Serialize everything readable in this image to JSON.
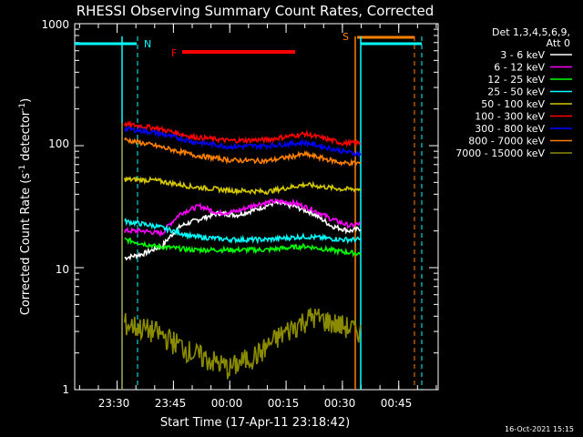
{
  "chart_data": {
    "type": "line",
    "title": "RHESSI Observing Summary Count Rates, Corrected",
    "xlabel": "Start Time (17-Apr-11 23:18:42)",
    "ylabel_main": "Corrected Count Rate (s",
    "ylabel_sup1": "-1",
    "ylabel_mid": " detector",
    "ylabel_sup2": "-1",
    "ylabel_end": ")",
    "ylog": true,
    "ylim": [
      1,
      1000
    ],
    "x_range_minutes": [
      "23:18:42",
      "00:55:30"
    ],
    "x_ticks": [
      "23:30",
      "23:45",
      "00:00",
      "00:15",
      "00:30",
      "00:45"
    ],
    "y_ticks": [
      "1",
      "10",
      "100",
      "1000"
    ],
    "legend_header": [
      "Det 1,3,4,5,6,9,",
      "Att 0"
    ],
    "legend_position": "top-right",
    "series": [
      {
        "name": "3 - 6 keV",
        "color": "#ffffff",
        "points": [
          [
            "23:32",
            12
          ],
          [
            "23:37",
            13
          ],
          [
            "23:42",
            15
          ],
          [
            "23:47",
            22
          ],
          [
            "23:52",
            25
          ],
          [
            "23:57",
            28
          ],
          [
            "00:02",
            27
          ],
          [
            "00:07",
            30
          ],
          [
            "00:12",
            34
          ],
          [
            "00:17",
            32
          ],
          [
            "00:22",
            28
          ],
          [
            "00:27",
            22
          ],
          [
            "00:32",
            20
          ],
          [
            "00:35",
            21
          ]
        ]
      },
      {
        "name": "6 - 12 keV",
        "color": "#ff00ff",
        "points": [
          [
            "23:32",
            20
          ],
          [
            "23:37",
            20
          ],
          [
            "23:42",
            19
          ],
          [
            "23:47",
            28
          ],
          [
            "23:52",
            32
          ],
          [
            "23:57",
            28
          ],
          [
            "00:02",
            29
          ],
          [
            "00:07",
            33
          ],
          [
            "00:12",
            35
          ],
          [
            "00:17",
            34
          ],
          [
            "00:22",
            30
          ],
          [
            "00:27",
            25
          ],
          [
            "00:32",
            22
          ],
          [
            "00:35",
            23
          ]
        ]
      },
      {
        "name": "12 - 25 keV",
        "color": "#00ff00",
        "points": [
          [
            "23:32",
            17
          ],
          [
            "23:40",
            15
          ],
          [
            "23:50",
            14
          ],
          [
            "00:00",
            14
          ],
          [
            "00:10",
            14
          ],
          [
            "00:20",
            15
          ],
          [
            "00:30",
            13.5
          ],
          [
            "00:35",
            13
          ]
        ]
      },
      {
        "name": "25 - 50 keV",
        "color": "#00ffff",
        "points": [
          [
            "23:32",
            24
          ],
          [
            "23:40",
            22
          ],
          [
            "23:50",
            18
          ],
          [
            "00:00",
            17
          ],
          [
            "00:10",
            17
          ],
          [
            "00:20",
            18
          ],
          [
            "00:30",
            17
          ],
          [
            "00:35",
            17
          ]
        ]
      },
      {
        "name": "50 - 100 keV",
        "color": "#d4c800",
        "points": [
          [
            "23:32",
            53
          ],
          [
            "23:40",
            52
          ],
          [
            "23:50",
            46
          ],
          [
            "00:00",
            43
          ],
          [
            "00:10",
            42
          ],
          [
            "00:20",
            48
          ],
          [
            "00:30",
            44
          ],
          [
            "00:35",
            44
          ]
        ]
      },
      {
        "name": "100 - 300 keV",
        "color": "#ff0000",
        "points": [
          [
            "23:32",
            150
          ],
          [
            "23:40",
            140
          ],
          [
            "23:50",
            118
          ],
          [
            "00:00",
            110
          ],
          [
            "00:10",
            112
          ],
          [
            "00:20",
            125
          ],
          [
            "00:30",
            105
          ],
          [
            "00:35",
            105
          ]
        ]
      },
      {
        "name": "300 - 800 keV",
        "color": "#0000ff",
        "points": [
          [
            "23:32",
            138
          ],
          [
            "23:40",
            128
          ],
          [
            "23:50",
            108
          ],
          [
            "00:00",
            98
          ],
          [
            "00:10",
            100
          ],
          [
            "00:20",
            106
          ],
          [
            "00:30",
            90
          ],
          [
            "00:35",
            85
          ]
        ]
      },
      {
        "name": "800 - 7000 keV",
        "color": "#ff8000",
        "points": [
          [
            "23:32",
            112
          ],
          [
            "23:40",
            100
          ],
          [
            "23:50",
            84
          ],
          [
            "00:00",
            76
          ],
          [
            "00:10",
            75
          ],
          [
            "00:20",
            85
          ],
          [
            "00:30",
            72
          ],
          [
            "00:35",
            72
          ]
        ]
      },
      {
        "name": "7000 - 15000 keV",
        "color": "#8b8b00",
        "points": [
          [
            "23:32",
            3.5
          ],
          [
            "23:40",
            3
          ],
          [
            "23:50",
            2
          ],
          [
            "00:00",
            1.5
          ],
          [
            "00:08",
            2
          ],
          [
            "00:15",
            3
          ],
          [
            "00:22",
            4
          ],
          [
            "00:28",
            3.5
          ],
          [
            "00:35",
            3
          ]
        ]
      }
    ],
    "annotations": {
      "night_label": "N",
      "flare_label": "F",
      "saa_label": "S"
    },
    "timestamp": "16-Oct-2021 15:15"
  }
}
